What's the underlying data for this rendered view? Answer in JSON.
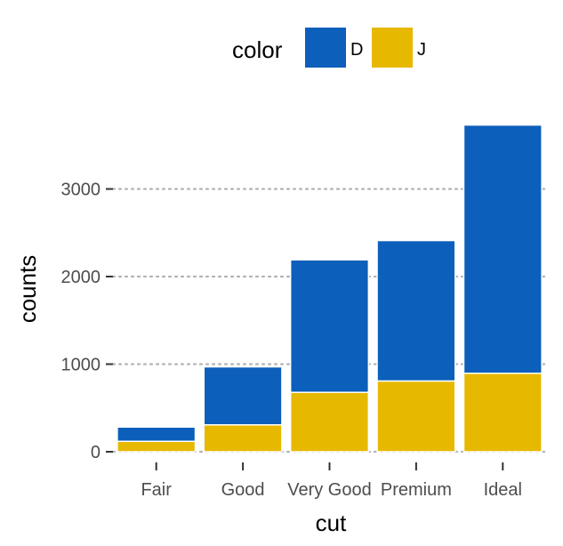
{
  "chart_data": {
    "type": "bar",
    "stacked": true,
    "categories": [
      "Fair",
      "Good",
      "Very Good",
      "Premium",
      "Ideal"
    ],
    "series": [
      {
        "name": "D",
        "color": "#0C5FBA",
        "values": [
          163,
          662,
          1513,
          1603,
          2834
        ]
      },
      {
        "name": "J",
        "color": "#E7B800",
        "values": [
          119,
          307,
          678,
          808,
          896
        ]
      }
    ],
    "xlabel": "cut",
    "ylabel": "counts",
    "ylim": [
      0,
      3730
    ],
    "yticks": [
      0,
      1000,
      2000,
      3000
    ],
    "ytick_labels": [
      "0",
      "1000",
      "2000",
      "3000"
    ],
    "grid": "horizontal dotted",
    "legend": {
      "title": "color",
      "position": "top"
    }
  }
}
